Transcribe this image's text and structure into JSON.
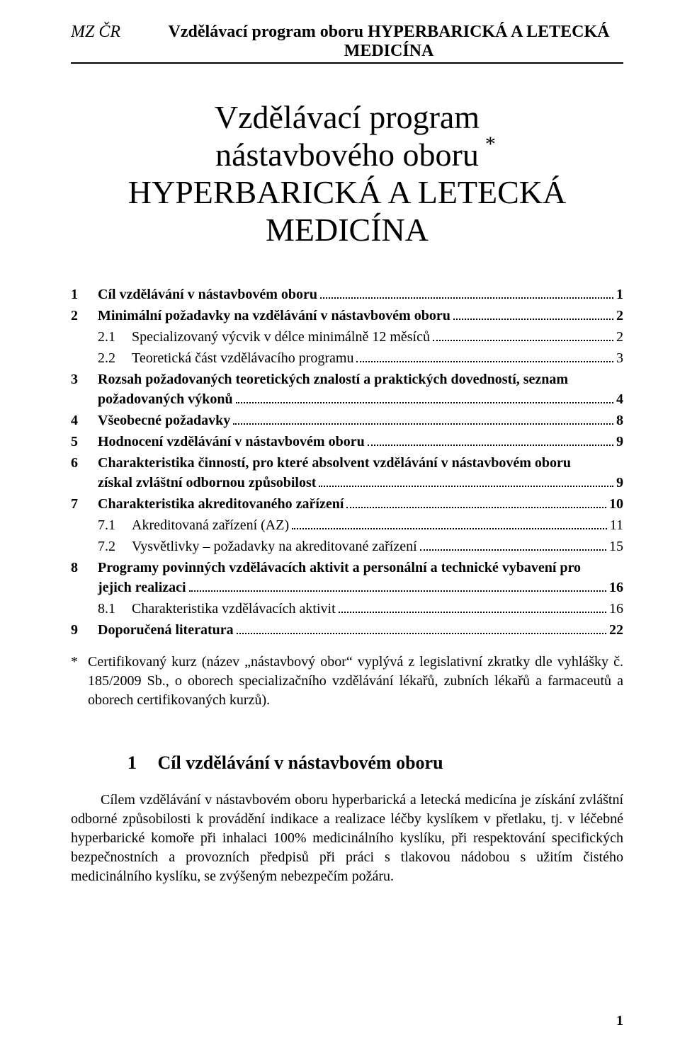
{
  "header": {
    "left": "MZ ČR",
    "right": "Vzdělávací program oboru HYPERBARICKÁ A LETECKÁ MEDICÍNA"
  },
  "title": {
    "line1": "Vzdělávací program",
    "line2": "nástavbového oboru",
    "asterisk": "*",
    "line3": "HYPERBARICKÁ A LETECKÁ",
    "line4": "MEDICÍNA"
  },
  "toc": [
    {
      "num": "1",
      "label": "Cíl vzdělávání v nástavbovém oboru",
      "page": "1",
      "bold": true
    },
    {
      "num": "2",
      "label": "Minimální požadavky na vzdělávání v nástavbovém oboru",
      "page": "2",
      "bold": true
    },
    {
      "num": "2.1",
      "label": "Specializovaný výcvik v délce minimálně 12 měsíců",
      "page": "2",
      "bold": false,
      "sub": true
    },
    {
      "num": "2.2",
      "label": "Teoretická část vzdělávacího programu",
      "page": "3",
      "bold": false,
      "sub": true
    },
    {
      "num": "3",
      "label_line1": "Rozsah požadovaných teoretických znalostí a praktických dovedností, seznam",
      "label_line2": "požadovaných výkonů",
      "page": "4",
      "bold": true
    },
    {
      "num": "4",
      "label": "Všeobecné požadavky",
      "page": "8",
      "bold": true
    },
    {
      "num": "5",
      "label": "Hodnocení vzdělávání v nástavbovém oboru",
      "page": "9",
      "bold": true
    },
    {
      "num": "6",
      "label_line1": "Charakteristika činností, pro které absolvent vzdělávání v nástavbovém oboru",
      "label_line2": "získal zvláštní odbornou způsobilost",
      "page": "9",
      "bold": true
    },
    {
      "num": "7",
      "label": "Charakteristika akreditovaného zařízení",
      "page": "10",
      "bold": true
    },
    {
      "num": "7.1",
      "label": "Akreditovaná zařízení (AZ)",
      "page": "11",
      "bold": false,
      "sub": true
    },
    {
      "num": "7.2",
      "label": "Vysvětlivky – požadavky na akreditované zařízení",
      "page": "15",
      "bold": false,
      "sub": true
    },
    {
      "num": "8",
      "label_line1": "Programy povinných vzdělávacích aktivit a personální  a technické vybavení pro",
      "label_line2": "jejich realizaci",
      "page": "16",
      "bold": true
    },
    {
      "num": "8.1",
      "label": "Charakteristika vzdělávacích aktivit",
      "page": "16",
      "bold": false,
      "sub": true
    },
    {
      "num": "9",
      "label": "Doporučená literatura",
      "page": "22",
      "bold": true
    }
  ],
  "footnote": {
    "mark": "*",
    "text": "Certifikovaný kurz (název „nástavbový obor“ vyplývá z legislativní zkratky dle vyhlášky č. 185/2009 Sb., o oborech specializačního vzdělávání lékařů, zubních lékařů a farmaceutů a oborech certifikovaných kurzů)."
  },
  "section1": {
    "num": "1",
    "title": "Cíl vzdělávání v nástavbovém oboru",
    "body": "Cílem vzdělávání v nástavbovém oboru hyperbarická a letecká medicína je získání zvláštní odborné způsobilosti k provádění indikace a realizace léčby kyslíkem v přetlaku, tj. v léčebné hyperbarické komoře při inhalaci 100% medicinálního kyslíku, při respektování specifických bezpečnostních a provozních předpisů při práci s tlakovou nádobou s užitím čistého medicinálního kyslíku, se zvýšeným nebezpečím požáru."
  },
  "pageNumber": "1",
  "colors": {
    "text": "#000000",
    "background": "#ffffff",
    "rule": "#000000"
  },
  "typography": {
    "body_font": "Times New Roman",
    "header_fontsize_pt": 18,
    "title_fontsize_pt": 34,
    "toc_fontsize_pt": 15,
    "section_heading_fontsize_pt": 20,
    "body_fontsize_pt": 15
  }
}
